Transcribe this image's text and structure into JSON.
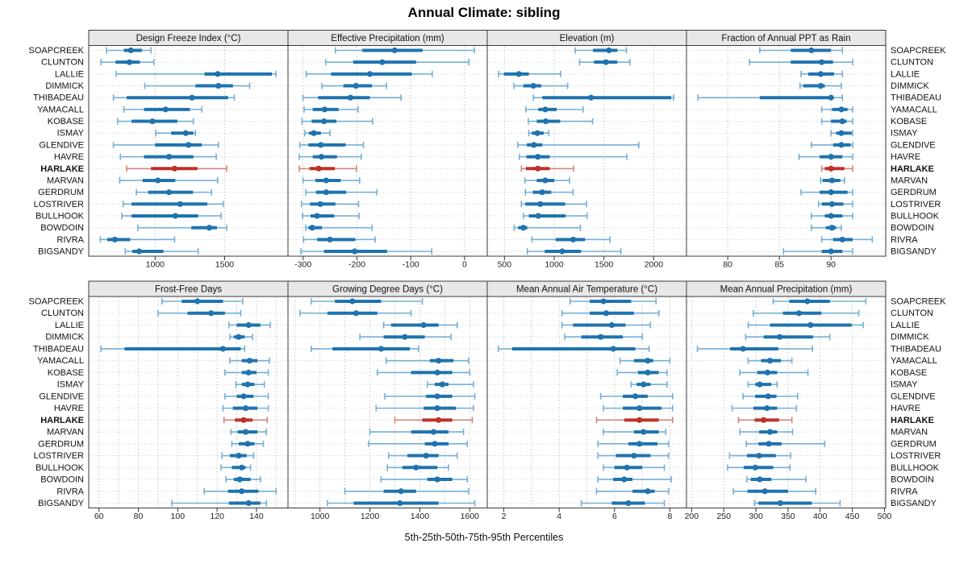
{
  "title": "Annual Climate: sibling",
  "footer": "5th-25th-50th-75th-95th Percentiles",
  "highlight_station": "HARLAKE",
  "colors": {
    "blue": "#1f73ae",
    "blue_light": "#74afd6",
    "red": "#bd3228",
    "red_light": "#d4857e",
    "header_bg": "#e8e8e8",
    "panel_border": "#3a3a3a",
    "gridline": "#c6c6c6",
    "row_line": "#d9d9d9",
    "tick": "#333333"
  },
  "stations": [
    "SOAPCREEK",
    "CLUNTON",
    "LALLIE",
    "DIMMICK",
    "THIBADEAU",
    "YAMACALL",
    "KOBASE",
    "ISMAY",
    "GLENDIVE",
    "HAVRE",
    "HARLAKE",
    "MARVAN",
    "GERDRUM",
    "LOSTRIVER",
    "BULLHOOK",
    "BOWDOIN",
    "RIVRA",
    "BIGSANDY"
  ],
  "chart_data": [
    {
      "type": "dotplot-percentiles",
      "title": "Design Freeze Index (°C)",
      "xlim": [
        522,
        1956
      ],
      "ticks": [
        1000,
        1500
      ],
      "gridlines": [
        1000,
        1500
      ],
      "values": [
        [
          650,
          775,
          825,
          905,
          970
        ],
        [
          610,
          715,
          815,
          890,
          990
        ],
        [
          720,
          1355,
          1450,
          1840,
          1870
        ],
        [
          925,
          1290,
          1455,
          1560,
          1680
        ],
        [
          700,
          795,
          1265,
          1525,
          1570
        ],
        [
          775,
          920,
          1075,
          1250,
          1335
        ],
        [
          730,
          830,
          980,
          1160,
          1275
        ],
        [
          1005,
          1115,
          1220,
          1275,
          1290
        ],
        [
          700,
          1000,
          1240,
          1335,
          1455
        ],
        [
          750,
          920,
          1100,
          1275,
          1440
        ],
        [
          795,
          970,
          1140,
          1305,
          1515
        ],
        [
          745,
          910,
          1020,
          1145,
          1450
        ],
        [
          865,
          950,
          1100,
          1273,
          1405
        ],
        [
          770,
          830,
          1180,
          1375,
          1490
        ],
        [
          760,
          830,
          1145,
          1310,
          1475
        ],
        [
          875,
          1260,
          1390,
          1445,
          1515
        ],
        [
          605,
          655,
          710,
          820,
          1140
        ],
        [
          785,
          835,
          885,
          1060,
          1310
        ]
      ]
    },
    {
      "type": "dotplot-percentiles",
      "title": "Effective Precipitation (mm)",
      "xlim": [
        -328,
        42
      ],
      "ticks": [
        -300,
        -200,
        -100,
        0
      ],
      "gridlines": [
        -300,
        -200,
        -100,
        0
      ],
      "values": [
        [
          -240,
          -190,
          -130,
          -78,
          18
        ],
        [
          -258,
          -207,
          -153,
          -90,
          8
        ],
        [
          -294,
          -248,
          -176,
          -98,
          -60
        ],
        [
          -265,
          -225,
          -202,
          -172,
          -145
        ],
        [
          -300,
          -272,
          -212,
          -176,
          -118
        ],
        [
          -298,
          -282,
          -260,
          -234,
          -198
        ],
        [
          -302,
          -284,
          -261,
          -238,
          -171
        ],
        [
          -297,
          -289,
          -280,
          -267,
          -250
        ],
        [
          -306,
          -290,
          -267,
          -221,
          -188
        ],
        [
          -307,
          -282,
          -266,
          -237,
          -192
        ],
        [
          -307,
          -288,
          -271,
          -241,
          -201
        ],
        [
          -300,
          -277,
          -257,
          -230,
          -195
        ],
        [
          -295,
          -276,
          -257,
          -220,
          -163
        ],
        [
          -303,
          -287,
          -268,
          -240,
          -197
        ],
        [
          -301,
          -286,
          -274,
          -242,
          -196
        ],
        [
          -295,
          -290,
          -283,
          -265,
          -172
        ],
        [
          -299,
          -274,
          -250,
          -203,
          -166
        ],
        [
          -304,
          -261,
          -204,
          -144,
          -61
        ]
      ]
    },
    {
      "type": "dotplot-percentiles",
      "title": "Elevation (m)",
      "xlim": [
        327,
        2329
      ],
      "ticks": [
        500,
        1000,
        1500,
        2000
      ],
      "gridlines": [
        500,
        1000,
        1500,
        2000
      ],
      "values": [
        [
          1210,
          1390,
          1550,
          1635,
          1725
        ],
        [
          1255,
          1400,
          1520,
          1635,
          1760
        ],
        [
          440,
          495,
          645,
          745,
          1065
        ],
        [
          595,
          690,
          790,
          870,
          1135
        ],
        [
          790,
          880,
          1370,
          2175,
          2200
        ],
        [
          715,
          840,
          910,
          1025,
          1290
        ],
        [
          740,
          825,
          915,
          1060,
          1385
        ],
        [
          745,
          775,
          830,
          895,
          945
        ],
        [
          635,
          725,
          795,
          880,
          1850
        ],
        [
          650,
          720,
          835,
          955,
          1730
        ],
        [
          670,
          715,
          835,
          955,
          1195
        ],
        [
          705,
          825,
          910,
          1000,
          1155
        ],
        [
          710,
          785,
          880,
          970,
          1190
        ],
        [
          670,
          710,
          860,
          1110,
          1325
        ],
        [
          690,
          745,
          840,
          1115,
          1330
        ],
        [
          597,
          638,
          690,
          730,
          1263
        ],
        [
          775,
          1015,
          1190,
          1310,
          1560
        ],
        [
          730,
          905,
          1080,
          1270,
          1670
        ]
      ]
    },
    {
      "type": "dotplot-percentiles",
      "title": "Fraction of Annual PPT as Rain",
      "xlim": [
        76,
        95.3
      ],
      "ticks": [
        80,
        85,
        90
      ],
      "gridlines": [
        80,
        85,
        90
      ],
      "values": [
        [
          83.1,
          86.1,
          88.1,
          90,
          91.1
        ],
        [
          82.1,
          86.1,
          89.1,
          90.2,
          92.1
        ],
        [
          87.1,
          87.8,
          89,
          90.3,
          91.1
        ],
        [
          87,
          87.3,
          89,
          89.4,
          91
        ],
        [
          77.1,
          83.1,
          90,
          90.2,
          91.1
        ],
        [
          89.1,
          90.1,
          91,
          91.6,
          92.1
        ],
        [
          89.1,
          90,
          91.1,
          91.5,
          92.1
        ],
        [
          90,
          90.5,
          91,
          92,
          92.1
        ],
        [
          88.1,
          90.2,
          91,
          91.9,
          92.1
        ],
        [
          86.9,
          88.9,
          90,
          91.1,
          92.1
        ],
        [
          89.1,
          89.4,
          90,
          91.3,
          92.1
        ],
        [
          89,
          89.2,
          90.1,
          90.9,
          91.3
        ],
        [
          87.1,
          88.9,
          90,
          91.6,
          92.1
        ],
        [
          88.8,
          89.1,
          90.1,
          91.2,
          92.1
        ],
        [
          88.1,
          89.4,
          90,
          91.1,
          92.1
        ],
        [
          88.1,
          89.5,
          90.1,
          90.5,
          91
        ],
        [
          89.1,
          90.2,
          91.1,
          92.1,
          94
        ],
        [
          85.4,
          89.1,
          90,
          91.1,
          92.1
        ]
      ]
    },
    {
      "type": "dotplot-percentiles",
      "title": "Frost-Free Days",
      "xlim": [
        54.8,
        156
      ],
      "ticks": [
        60,
        80,
        100,
        120,
        140
      ],
      "gridlines": [
        60,
        70,
        80,
        90,
        100,
        110,
        120,
        130,
        140,
        150
      ],
      "values": [
        [
          92,
          102,
          110,
          123,
          133
        ],
        [
          90,
          105,
          117,
          124,
          132
        ],
        [
          126,
          130,
          136,
          142,
          147
        ],
        [
          126.5,
          128.5,
          131,
          134,
          138
        ],
        [
          61,
          73,
          123,
          132,
          134
        ],
        [
          126.5,
          132.5,
          136.5,
          140.5,
          146.5
        ],
        [
          124,
          132.5,
          136,
          140,
          146
        ],
        [
          129.5,
          132.5,
          135.5,
          139,
          144
        ],
        [
          124,
          130,
          133.5,
          138.5,
          146
        ],
        [
          123,
          128,
          134.5,
          140.5,
          146
        ],
        [
          123.5,
          129,
          133.5,
          138,
          145.5
        ],
        [
          127,
          130.5,
          134.5,
          140.5,
          145
        ],
        [
          127.5,
          131,
          135.5,
          139,
          143.5
        ],
        [
          122.5,
          126.5,
          131,
          135,
          138.5
        ],
        [
          122,
          127.5,
          132.5,
          134.5,
          137
        ],
        [
          124.5,
          128.5,
          131.5,
          137,
          142
        ],
        [
          113.5,
          125.5,
          132.5,
          141,
          150
        ],
        [
          97,
          126,
          136,
          142,
          145
        ]
      ]
    },
    {
      "type": "dotplot-percentiles",
      "title": "Growing Degree Days (°C)",
      "xlim": [
        872,
        1670
      ],
      "ticks": [
        1000,
        1200,
        1400,
        1600
      ],
      "gridlines": [
        900,
        1000,
        1100,
        1200,
        1300,
        1400,
        1500,
        1600
      ],
      "values": [
        [
          965,
          1060,
          1130,
          1245,
          1410
        ],
        [
          920,
          1030,
          1145,
          1230,
          1365
        ],
        [
          1255,
          1285,
          1415,
          1475,
          1550
        ],
        [
          1160,
          1255,
          1340,
          1420,
          1525
        ],
        [
          965,
          1050,
          1245,
          1360,
          1395
        ],
        [
          1265,
          1440,
          1475,
          1535,
          1595
        ],
        [
          1230,
          1365,
          1470,
          1530,
          1600
        ],
        [
          1430,
          1460,
          1490,
          1515,
          1615
        ],
        [
          1260,
          1425,
          1470,
          1530,
          1620
        ],
        [
          1225,
          1415,
          1470,
          1545,
          1615
        ],
        [
          1300,
          1410,
          1475,
          1530,
          1610
        ],
        [
          1200,
          1365,
          1455,
          1515,
          1575
        ],
        [
          1195,
          1420,
          1460,
          1515,
          1590
        ],
        [
          1275,
          1350,
          1425,
          1475,
          1550
        ],
        [
          1270,
          1330,
          1385,
          1470,
          1515
        ],
        [
          1245,
          1430,
          1470,
          1530,
          1590
        ],
        [
          1100,
          1255,
          1325,
          1385,
          1595
        ],
        [
          1030,
          1135,
          1320,
          1475,
          1620
        ]
      ]
    },
    {
      "type": "dotplot-percentiles",
      "title": "Mean Annual Air Temperature (°C)",
      "xlim": [
        1.4,
        8.6
      ],
      "ticks": [
        2,
        4,
        6,
        8
      ],
      "gridlines": [
        2,
        3,
        4,
        5,
        6,
        7,
        8
      ],
      "values": [
        [
          4.4,
          5.1,
          5.6,
          6.6,
          7.5
        ],
        [
          4.1,
          5.1,
          5.7,
          6.7,
          7.6
        ],
        [
          4.1,
          4.5,
          5.9,
          6.4,
          7.3
        ],
        [
          4.2,
          4.8,
          5.5,
          6.3,
          7.0
        ],
        [
          1.8,
          2.3,
          5.95,
          6.75,
          7.25
        ],
        [
          6.2,
          6.7,
          7.2,
          7.4,
          8.0
        ],
        [
          6.1,
          6.85,
          7.2,
          7.6,
          7.9
        ],
        [
          6.6,
          6.8,
          7.05,
          7.3,
          7.9
        ],
        [
          5.5,
          6.3,
          6.75,
          7.2,
          8.1
        ],
        [
          5.6,
          6.3,
          6.9,
          7.7,
          8.1
        ],
        [
          5.35,
          6.35,
          6.9,
          7.6,
          8.1
        ],
        [
          5.6,
          6.7,
          7.05,
          7.6,
          7.85
        ],
        [
          5.4,
          6.5,
          6.9,
          7.55,
          7.95
        ],
        [
          5.4,
          6.05,
          6.7,
          7.3,
          7.95
        ],
        [
          5.6,
          6.0,
          6.45,
          7.0,
          7.8
        ],
        [
          5.4,
          5.95,
          6.35,
          6.65,
          8.05
        ],
        [
          5.35,
          6.65,
          7.2,
          7.45,
          7.95
        ],
        [
          4.8,
          5.9,
          6.5,
          7.1,
          7.8
        ]
      ]
    },
    {
      "type": "dotplot-percentiles",
      "title": "Mean Annual Precipitation (mm)",
      "xlim": [
        192,
        502
      ],
      "ticks": [
        200,
        250,
        300,
        350,
        400,
        450,
        500
      ],
      "gridlines": [
        200,
        250,
        300,
        350,
        400,
        450,
        500
      ],
      "values": [
        [
          327,
          352,
          380,
          415,
          471
        ],
        [
          296,
          342,
          367,
          402,
          460
        ],
        [
          288,
          322,
          385,
          449,
          467
        ],
        [
          284,
          312,
          337,
          389,
          415
        ],
        [
          209,
          260,
          280,
          335,
          388
        ],
        [
          288,
          308,
          322,
          339,
          356
        ],
        [
          275,
          302,
          318,
          333,
          381
        ],
        [
          288,
          299,
          306,
          324,
          333
        ],
        [
          280,
          299,
          319,
          332,
          365
        ],
        [
          263,
          296,
          317,
          333,
          363
        ],
        [
          273,
          298,
          312,
          336,
          356
        ],
        [
          275,
          305,
          322,
          333,
          357
        ],
        [
          285,
          304,
          320,
          340,
          407
        ],
        [
          259,
          286,
          305,
          331,
          354
        ],
        [
          256,
          281,
          299,
          327,
          353
        ],
        [
          286,
          292,
          306,
          324,
          378
        ],
        [
          265,
          287,
          314,
          350,
          393
        ],
        [
          298,
          304,
          338,
          387,
          431
        ]
      ]
    }
  ]
}
